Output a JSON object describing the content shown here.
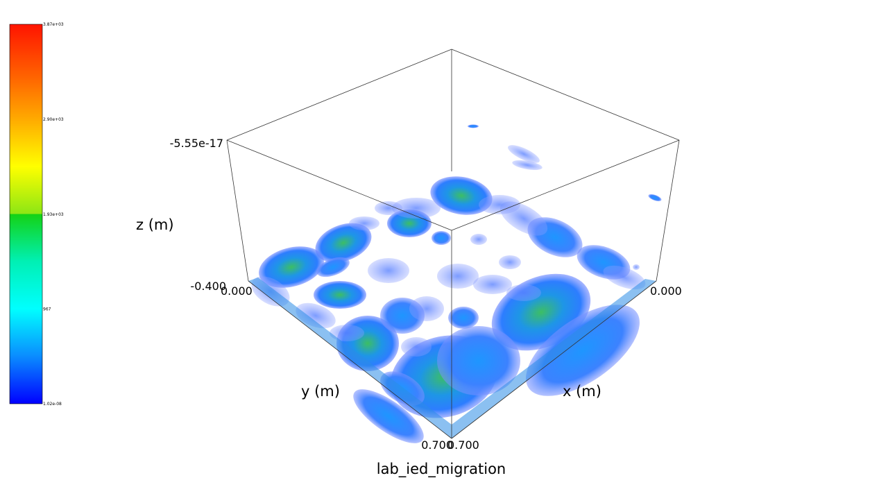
{
  "chart_data": {
    "type": "heatmap",
    "render": "3d-volume",
    "title": "lab_ied_migration",
    "xlabel": "x (m)",
    "ylabel": "y (m)",
    "zlabel": "z (m)",
    "x_ticks": [
      "0.000",
      "0.700"
    ],
    "y_ticks": [
      "0.000",
      "0.700"
    ],
    "z_ticks": [
      "-5.55e-17",
      "-0.400"
    ],
    "xlim": [
      0.0,
      0.7
    ],
    "ylim": [
      0.0,
      0.7
    ],
    "zlim": [
      -0.4,
      -5.55e-17
    ],
    "colorbar": {
      "labels": [
        "3.87e+03",
        "2.90e+03",
        "1.93e+03",
        "967",
        "1.02e-08"
      ],
      "values": [
        3870,
        2900,
        1930,
        967,
        1.02e-08
      ],
      "min": 1.02e-08,
      "max": 3870,
      "colormap": "rainbow",
      "placement": "left",
      "colors": [
        "#ff1400",
        "#ff8c00",
        "#ffff00",
        "#14d214",
        "#00ffff",
        "#0a78ff",
        "#0000ff"
      ]
    },
    "blob_colors": {
      "low": "#6e87ff",
      "mid": "#1e8cff",
      "high": "#3cbe64"
    }
  }
}
